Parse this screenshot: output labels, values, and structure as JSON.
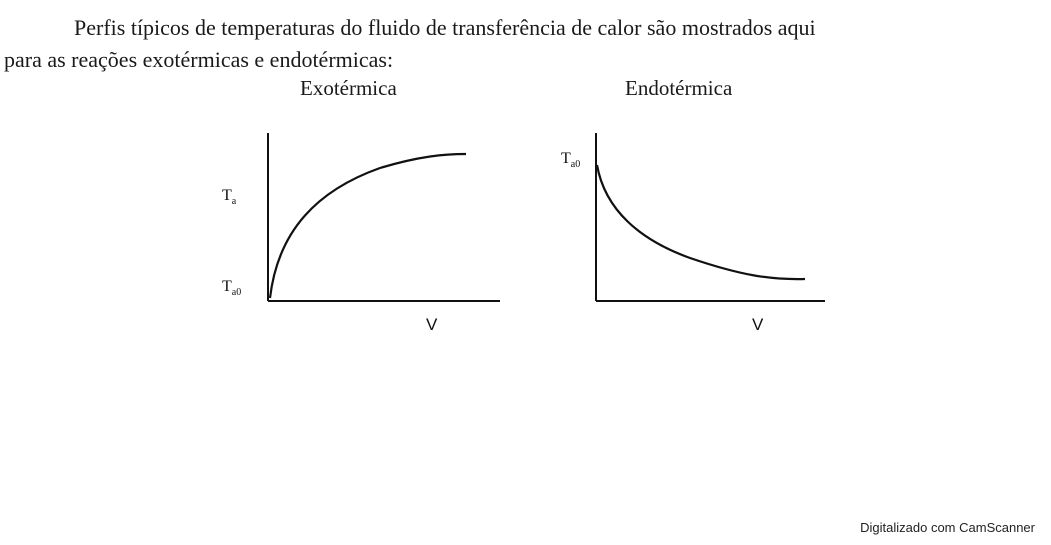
{
  "paragraph": {
    "line1": "Perfis típicos de temperaturas do fluido de transferência de calor são mostrados aqui",
    "line2": "para as reações exotérmicas e endotérmicas:"
  },
  "figures": {
    "exothermic": {
      "title": "Exotérmica",
      "y_label_top": "Ta",
      "y_label_bottom": "Ta0",
      "x_label": "V"
    },
    "endothermic": {
      "title": "Endotérmica",
      "y_label_top": "Ta0",
      "x_label": "V"
    }
  },
  "footer": "Digitalizado com CamScanner"
}
